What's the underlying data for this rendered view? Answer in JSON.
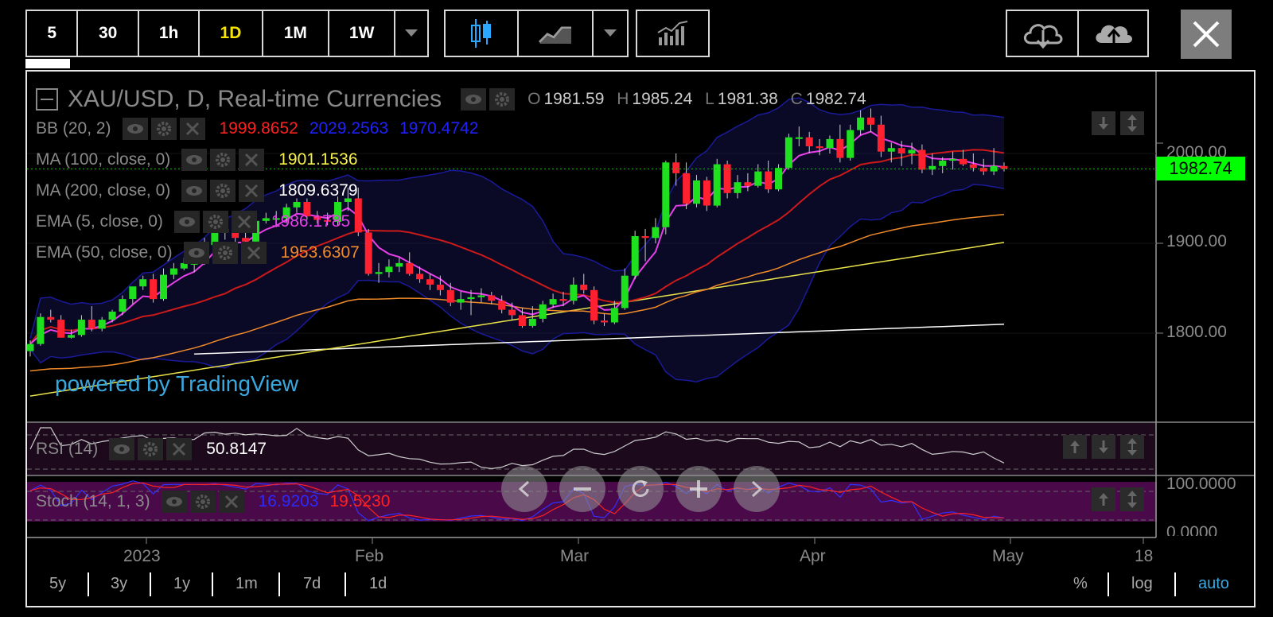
{
  "toolbar": {
    "intervals": [
      "5",
      "30",
      "1h",
      "1D",
      "1M",
      "1W"
    ],
    "active_interval": "1D"
  },
  "chart_header": {
    "symbol_title": "XAU/USD, D, Real-time Currencies",
    "ohlc": [
      {
        "label": "O",
        "value": "1981.59"
      },
      {
        "label": "H",
        "value": "1985.24"
      },
      {
        "label": "L",
        "value": "1981.38"
      },
      {
        "label": "C",
        "value": "1982.74"
      }
    ]
  },
  "indicators": [
    {
      "name": "BB (20, 2)",
      "values": [
        {
          "v": "1999.8652",
          "color": "#ff2020"
        },
        {
          "v": "2029.2563",
          "color": "#2020ff"
        },
        {
          "v": "1970.4742",
          "color": "#2020ff"
        }
      ]
    },
    {
      "name": "MA (100, close, 0)",
      "values": [
        {
          "v": "1901.1536",
          "color": "#f5f04a"
        }
      ]
    },
    {
      "name": "MA (200, close, 0)",
      "values": [
        {
          "v": "1809.6379",
          "color": "#ffffff"
        }
      ]
    },
    {
      "name": "EMA (5, close, 0)",
      "values": [
        {
          "v": "1986.1785",
          "color": "#e83fe8"
        }
      ]
    },
    {
      "name": "EMA (50, close, 0)",
      "values": [
        {
          "v": "1953.6307",
          "color": "#f08a2a"
        }
      ]
    }
  ],
  "watermark": "powered by TradingView",
  "price_axis": {
    "labels": [
      "2000.00",
      "1900.00",
      "1800.00"
    ],
    "current_price": "1982.74"
  },
  "rsi": {
    "name": "RSI (14)",
    "value": "50.8147"
  },
  "stoch": {
    "name": "Stoch (14, 1, 3)",
    "k": "16.9203",
    "d": "19.5230",
    "axis": [
      "100.0000",
      "0.0000"
    ]
  },
  "time_axis": [
    "2023",
    "Feb",
    "Mar",
    "Apr",
    "May",
    "18"
  ],
  "ranges": [
    "5y",
    "3y",
    "1y",
    "1m",
    "7d",
    "1d"
  ],
  "scale_options": {
    "percent": "%",
    "log": "log",
    "auto": "auto"
  },
  "colors": {
    "up": "#1ee01e",
    "down": "#ff2030",
    "accent": "#3aa8e0",
    "current_price_bg": "#00ff00",
    "active_interval": "#f5e400"
  },
  "chart_data": {
    "type": "candlestick",
    "title": "XAU/USD, D, Real-time Currencies",
    "ylim": [
      1770,
      2060
    ],
    "x": [
      "2022-12-19",
      "2022-12-20",
      "2022-12-21",
      "2022-12-22",
      "2022-12-23",
      "2022-12-27",
      "2022-12-28",
      "2022-12-29",
      "2022-12-30",
      "2023-01-02",
      "2023-01-03",
      "2023-01-04",
      "2023-01-05",
      "2023-01-06",
      "2023-01-09",
      "2023-01-10",
      "2023-01-11",
      "2023-01-12",
      "2023-01-13",
      "2023-01-16",
      "2023-01-17",
      "2023-01-18",
      "2023-01-19",
      "2023-01-20",
      "2023-01-23",
      "2023-01-24",
      "2023-01-25",
      "2023-01-26",
      "2023-01-27",
      "2023-01-30",
      "2023-01-31",
      "2023-02-01",
      "2023-02-02",
      "2023-02-03",
      "2023-02-06",
      "2023-02-07",
      "2023-02-08",
      "2023-02-09",
      "2023-02-10",
      "2023-02-13",
      "2023-02-14",
      "2023-02-15",
      "2023-02-16",
      "2023-02-17",
      "2023-02-20",
      "2023-02-21",
      "2023-02-22",
      "2023-02-23",
      "2023-02-24",
      "2023-02-27",
      "2023-02-28",
      "2023-03-01",
      "2023-03-02",
      "2023-03-03",
      "2023-03-06",
      "2023-03-07",
      "2023-03-08",
      "2023-03-09",
      "2023-03-10",
      "2023-03-13",
      "2023-03-14",
      "2023-03-15",
      "2023-03-16",
      "2023-03-17",
      "2023-03-20",
      "2023-03-21",
      "2023-03-22",
      "2023-03-23",
      "2023-03-24",
      "2023-03-27",
      "2023-03-28",
      "2023-03-29",
      "2023-03-30",
      "2023-03-31",
      "2023-04-03",
      "2023-04-04",
      "2023-04-05",
      "2023-04-06",
      "2023-04-07",
      "2023-04-10",
      "2023-04-11",
      "2023-04-12",
      "2023-04-13",
      "2023-04-14",
      "2023-04-17",
      "2023-04-18",
      "2023-04-19",
      "2023-04-20",
      "2023-04-21",
      "2023-04-24",
      "2023-04-25",
      "2023-04-26",
      "2023-04-27",
      "2023-04-28",
      "2023-05-01",
      "2023-05-02"
    ],
    "series": [
      {
        "name": "O",
        "values": [
          1780,
          1788,
          1818,
          1815,
          1795,
          1798,
          1815,
          1805,
          1815,
          1824,
          1838,
          1852,
          1860,
          1838,
          1865,
          1872,
          1878,
          1878,
          1898,
          1916,
          1912,
          1906,
          1902,
          1925,
          1928,
          1928,
          1940,
          1946,
          1930,
          1926,
          1924,
          1946,
          1950,
          1912,
          1866,
          1868,
          1874,
          1878,
          1866,
          1860,
          1854,
          1848,
          1834,
          1838,
          1840,
          1842,
          1836,
          1826,
          1820,
          1808,
          1816,
          1832,
          1838,
          1836,
          1854,
          1848,
          1814,
          1812,
          1828,
          1864,
          1908,
          1906,
          1918,
          1990,
          1978,
          1944,
          1970,
          1942,
          1988,
          1956,
          1968,
          1964,
          1980,
          1960,
          1984,
          2018,
          2018,
          2008,
          2006,
          2016,
          1995,
          2026,
          2040,
          2032,
          2002,
          2006,
          2000,
          2004,
          1982,
          1986,
          1992,
          1994,
          1988,
          1984,
          1980,
          1986
        ]
      },
      {
        "name": "H",
        "values": [
          1792,
          1822,
          1826,
          1820,
          1804,
          1820,
          1830,
          1818,
          1826,
          1842,
          1850,
          1864,
          1866,
          1872,
          1878,
          1884,
          1884,
          1906,
          1922,
          1920,
          1920,
          1914,
          1930,
          1934,
          1936,
          1944,
          1950,
          1950,
          1936,
          1934,
          1952,
          1962,
          1962,
          1916,
          1878,
          1882,
          1884,
          1890,
          1874,
          1866,
          1864,
          1856,
          1846,
          1848,
          1850,
          1846,
          1842,
          1834,
          1828,
          1830,
          1836,
          1844,
          1846,
          1862,
          1866,
          1852,
          1822,
          1836,
          1872,
          1914,
          1916,
          1928,
          1992,
          2000,
          1990,
          1976,
          1974,
          1994,
          1992,
          1976,
          1978,
          1988,
          1992,
          1988,
          2022,
          2030,
          2024,
          2016,
          2020,
          2032,
          2032,
          2048,
          2050,
          2042,
          2012,
          2014,
          2012,
          2010,
          2000,
          1996,
          2002,
          2004,
          2000,
          1994,
          2006,
          1990
        ]
      },
      {
        "name": "L",
        "values": [
          1774,
          1786,
          1812,
          1796,
          1794,
          1796,
          1802,
          1802,
          1812,
          1820,
          1832,
          1848,
          1834,
          1836,
          1860,
          1870,
          1868,
          1876,
          1894,
          1904,
          1900,
          1898,
          1898,
          1922,
          1918,
          1922,
          1934,
          1926,
          1922,
          1920,
          1920,
          1936,
          1908,
          1864,
          1856,
          1862,
          1868,
          1864,
          1856,
          1848,
          1842,
          1830,
          1826,
          1820,
          1834,
          1832,
          1822,
          1814,
          1806,
          1806,
          1812,
          1828,
          1830,
          1832,
          1844,
          1810,
          1808,
          1810,
          1826,
          1860,
          1880,
          1900,
          1910,
          1964,
          1938,
          1940,
          1936,
          1940,
          1950,
          1950,
          1958,
          1962,
          1956,
          1958,
          1982,
          2008,
          2000,
          1998,
          2000,
          1990,
          1992,
          2020,
          2024,
          1996,
          1990,
          1986,
          1988,
          1978,
          1976,
          1978,
          1982,
          1986,
          1980,
          1976,
          1976,
          1980
        ]
      },
      {
        "name": "C",
        "values": [
          1788,
          1818,
          1815,
          1795,
          1798,
          1815,
          1805,
          1815,
          1824,
          1838,
          1852,
          1860,
          1838,
          1865,
          1872,
          1878,
          1878,
          1898,
          1916,
          1912,
          1906,
          1902,
          1925,
          1928,
          1928,
          1940,
          1946,
          1930,
          1926,
          1924,
          1946,
          1950,
          1912,
          1866,
          1868,
          1874,
          1878,
          1866,
          1860,
          1854,
          1848,
          1834,
          1838,
          1840,
          1842,
          1836,
          1826,
          1820,
          1808,
          1816,
          1832,
          1838,
          1836,
          1854,
          1848,
          1814,
          1812,
          1828,
          1864,
          1908,
          1906,
          1918,
          1990,
          1978,
          1944,
          1970,
          1942,
          1988,
          1956,
          1968,
          1964,
          1980,
          1960,
          1984,
          2018,
          2018,
          2008,
          2006,
          2016,
          1995,
          2026,
          2040,
          2032,
          2002,
          2006,
          2000,
          2004,
          1982,
          1986,
          1992,
          1994,
          1988,
          1984,
          1980,
          1986,
          1983
        ]
      }
    ]
  }
}
